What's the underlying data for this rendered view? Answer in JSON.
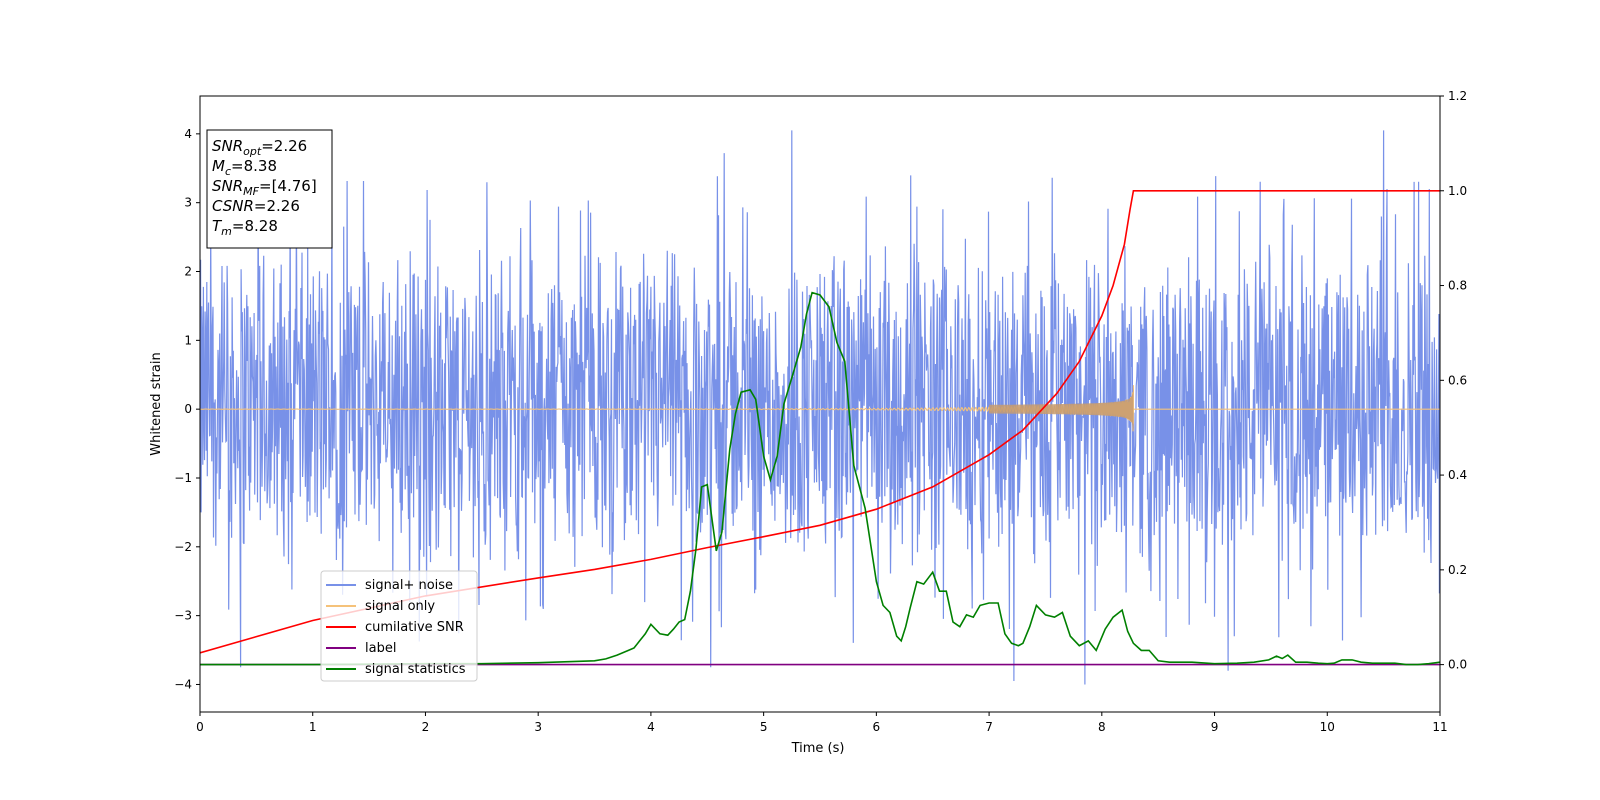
{
  "chart_data": {
    "type": "line",
    "title": "",
    "xlabel": "Time (s)",
    "ylabel": "Whitened strain",
    "y2label": "",
    "xlim": [
      0,
      11
    ],
    "ylim": [
      -4.4,
      4.55
    ],
    "y2lim": [
      -0.1,
      1.2
    ],
    "xticks": [
      0,
      1,
      2,
      3,
      4,
      5,
      6,
      7,
      8,
      9,
      10,
      11
    ],
    "yticks": [
      -4,
      -3,
      -2,
      -1,
      0,
      1,
      2,
      3,
      4
    ],
    "y2ticks": [
      0.0,
      0.2,
      0.4,
      0.6,
      0.8,
      1.0,
      1.2
    ],
    "grid": false,
    "legend_position": "lower-left",
    "annotation_box": [
      {
        "sym": "SNR",
        "sub": "opt",
        "val": "=2.26"
      },
      {
        "sym": "M",
        "sub": "c",
        "val": "=8.38"
      },
      {
        "sym": "SNR",
        "sub": "MF",
        "val": "=[4.76]"
      },
      {
        "sym": "CSNR",
        "sub": "",
        "val": "=2.26"
      },
      {
        "sym": "T",
        "sub": "m",
        "val": "=8.28"
      }
    ],
    "merger_time": 8.28,
    "series": [
      {
        "name": "signal+ noise",
        "color": "#7891e8",
        "axis": "left",
        "kind": "noise",
        "n_points": 2200,
        "band": [
          -2.3,
          2.7
        ],
        "peaks": [
          [
            5.25,
            4.05
          ],
          [
            10.5,
            4.05
          ],
          [
            4.65,
            3.72
          ],
          [
            7.85,
            -4.0
          ],
          [
            7.22,
            -3.95
          ],
          [
            0.36,
            -3.75
          ],
          [
            4.53,
            -3.75
          ],
          [
            9.12,
            -3.8
          ]
        ]
      },
      {
        "name": "signal only",
        "color": "#f5c27a",
        "axis": "left",
        "kind": "chirp",
        "t_start": 0,
        "t_end": 8.28,
        "amp_end": 0.35
      },
      {
        "name": "cumilative SNR",
        "color": "#ff0000",
        "axis": "right",
        "x": [
          0,
          1,
          2,
          3,
          3.5,
          4,
          4.5,
          5,
          5.5,
          6,
          6.5,
          7,
          7.3,
          7.6,
          7.8,
          8.0,
          8.1,
          8.2,
          8.25,
          8.28,
          9,
          10,
          11
        ],
        "values": [
          0.025,
          0.093,
          0.145,
          0.183,
          0.201,
          0.222,
          0.247,
          0.27,
          0.294,
          0.328,
          0.375,
          0.443,
          0.495,
          0.572,
          0.64,
          0.736,
          0.8,
          0.887,
          0.96,
          1.0,
          1.0,
          1.0,
          1.0
        ]
      },
      {
        "name": "label",
        "color": "#800080",
        "axis": "right",
        "x": [
          0,
          11
        ],
        "values": [
          0.0,
          0.0
        ]
      },
      {
        "name": "signal statistics",
        "color": "#008000",
        "axis": "right",
        "x": [
          0,
          1,
          2,
          2.5,
          3,
          3.5,
          3.6,
          3.7,
          3.8,
          3.85,
          3.9,
          3.95,
          4.0,
          4.08,
          4.15,
          4.2,
          4.25,
          4.3,
          4.35,
          4.4,
          4.45,
          4.5,
          4.58,
          4.63,
          4.7,
          4.75,
          4.8,
          4.88,
          4.93,
          5.0,
          5.06,
          5.12,
          5.18,
          5.25,
          5.33,
          5.38,
          5.43,
          5.5,
          5.58,
          5.65,
          5.72,
          5.8,
          5.9,
          6.0,
          6.06,
          6.12,
          6.18,
          6.22,
          6.26,
          6.3,
          6.36,
          6.42,
          6.5,
          6.56,
          6.62,
          6.68,
          6.74,
          6.8,
          6.86,
          6.92,
          7.0,
          7.08,
          7.14,
          7.2,
          7.26,
          7.3,
          7.36,
          7.42,
          7.5,
          7.58,
          7.65,
          7.72,
          7.8,
          7.88,
          7.95,
          8.03,
          8.1,
          8.18,
          8.23,
          8.28,
          8.35,
          8.42,
          8.5,
          8.6,
          8.8,
          9.0,
          9.2,
          9.35,
          9.48,
          9.55,
          9.6,
          9.65,
          9.72,
          9.82,
          9.92,
          10.0,
          10.06,
          10.13,
          10.22,
          10.3,
          10.4,
          10.5,
          10.6,
          10.7,
          10.8,
          10.9,
          11.0
        ],
        "values": [
          0.0,
          0.0,
          0.002,
          0.002,
          0.004,
          0.008,
          0.012,
          0.02,
          0.03,
          0.035,
          0.05,
          0.065,
          0.085,
          0.065,
          0.062,
          0.075,
          0.09,
          0.095,
          0.155,
          0.245,
          0.375,
          0.38,
          0.24,
          0.28,
          0.455,
          0.53,
          0.575,
          0.58,
          0.56,
          0.44,
          0.39,
          0.44,
          0.55,
          0.605,
          0.67,
          0.74,
          0.785,
          0.78,
          0.755,
          0.68,
          0.64,
          0.42,
          0.33,
          0.175,
          0.125,
          0.11,
          0.06,
          0.05,
          0.08,
          0.12,
          0.175,
          0.17,
          0.195,
          0.155,
          0.155,
          0.09,
          0.08,
          0.105,
          0.1,
          0.125,
          0.13,
          0.13,
          0.065,
          0.045,
          0.04,
          0.045,
          0.08,
          0.125,
          0.105,
          0.1,
          0.11,
          0.06,
          0.04,
          0.05,
          0.03,
          0.075,
          0.1,
          0.115,
          0.07,
          0.045,
          0.03,
          0.03,
          0.008,
          0.005,
          0.005,
          0.002,
          0.003,
          0.005,
          0.01,
          0.018,
          0.013,
          0.02,
          0.005,
          0.005,
          0.003,
          0.002,
          0.003,
          0.01,
          0.01,
          0.005,
          0.003,
          0.003,
          0.003,
          0.0,
          0.0,
          0.002,
          0.005
        ]
      }
    ]
  }
}
